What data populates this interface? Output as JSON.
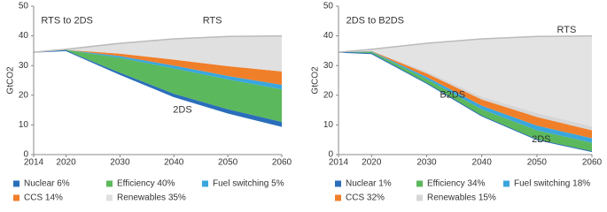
{
  "chart_data": [
    {
      "type": "stacked_area",
      "title": "RTS to 2DS",
      "ylabel": "GtCO2",
      "x": [
        2014,
        2020,
        2030,
        2040,
        2050,
        2060
      ],
      "xlim": [
        2014,
        2060
      ],
      "xticks": [
        2014,
        2020,
        2030,
        2040,
        2050,
        2060
      ],
      "ylim": [
        0,
        50
      ],
      "yticks": [
        0,
        10,
        20,
        30,
        40,
        50
      ],
      "lower": {
        "label": "2DS",
        "values": [
          34.5,
          35,
          27,
          19.5,
          14,
          9.5
        ]
      },
      "upper": {
        "label": "RTS",
        "color": "#e3e3e3",
        "values": [
          34.5,
          35.5,
          37.5,
          39,
          39.8,
          40
        ]
      },
      "series": [
        {
          "name": "Nuclear 6%",
          "color": "#2a6ebb",
          "values": [
            0,
            0.05,
            0.6,
            1,
            1.3,
            1.5
          ]
        },
        {
          "name": "Efficiency 40%",
          "color": "#5cb85c",
          "values": [
            0,
            0.2,
            5,
            8.5,
            10,
            11
          ]
        },
        {
          "name": "Fuel switching 5%",
          "color": "#3aa6dd",
          "values": [
            0,
            0.05,
            0.6,
            1,
            1.2,
            1.5
          ]
        },
        {
          "name": "CCS 14%",
          "color": "#f07f2a",
          "values": [
            0,
            0,
            0.8,
            2,
            3.3,
            4.5
          ]
        },
        {
          "name": "Renewables 35%",
          "color": "#e0e0e0",
          "values": [
            0,
            0.2,
            3.5,
            7,
            10,
            12
          ]
        }
      ]
    },
    {
      "type": "stacked_area",
      "title": "2DS to B2DS",
      "ylabel": "GtCO2",
      "x": [
        2014,
        2020,
        2030,
        2040,
        2050,
        2060
      ],
      "xlim": [
        2014,
        2060
      ],
      "xticks": [
        2014,
        2020,
        2030,
        2040,
        2050,
        2060
      ],
      "ylim": [
        0,
        50
      ],
      "yticks": [
        0,
        10,
        20,
        30,
        40,
        50
      ],
      "lower": {
        "label": "B2DS",
        "values": [
          34.5,
          34,
          24,
          13,
          5,
          1
        ]
      },
      "upper": {
        "label": "RTS",
        "color": "#e3e3e3",
        "values": [
          34.5,
          35.5,
          37.5,
          39,
          39.8,
          40
        ]
      },
      "annotations": [
        "2DS"
      ],
      "series": [
        {
          "name": "Nuclear 1%",
          "color": "#2a6ebb",
          "values": [
            0,
            0.1,
            0.05,
            0.07,
            0.09,
            0.09
          ]
        },
        {
          "name": "Efficiency 34%",
          "color": "#5cb85c",
          "values": [
            0,
            0.5,
            1.4,
            2.2,
            3.1,
            2.9
          ]
        },
        {
          "name": "Fuel switching 18%",
          "color": "#3aa6dd",
          "values": [
            0,
            0.2,
            0.7,
            1.2,
            1.6,
            1.5
          ]
        },
        {
          "name": "CCS 32%",
          "color": "#f07f2a",
          "values": [
            0,
            0.1,
            1.2,
            2.1,
            2.9,
            2.7
          ]
        },
        {
          "name": "Renewables 15%",
          "color": "#d6d6d6",
          "values": [
            0,
            0.1,
            0.65,
            0.93,
            1.31,
            1.31
          ]
        }
      ]
    }
  ]
}
